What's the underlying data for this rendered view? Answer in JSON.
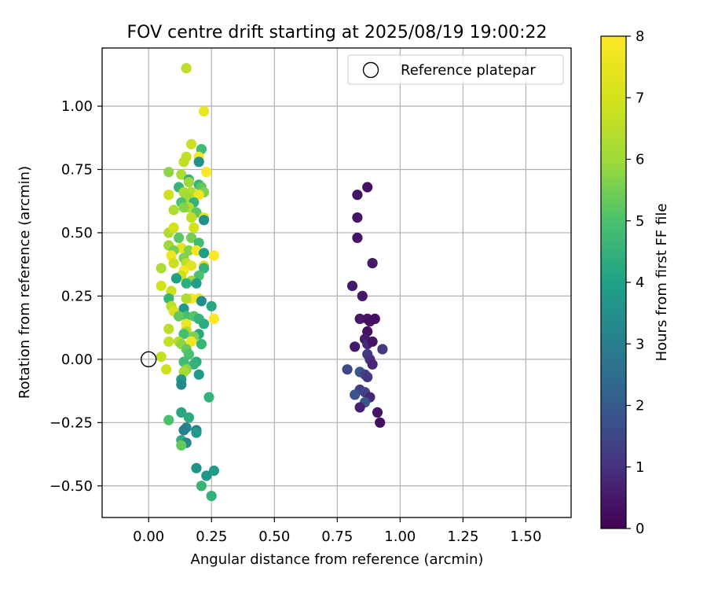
{
  "chart_data": {
    "type": "scatter",
    "title": "FOV centre drift starting at 2025/08/19 19:00:22",
    "xlabel": "Angular distance from reference (arcmin)",
    "ylabel": "Rotation from reference (arcmin)",
    "xlim": [
      -0.185,
      1.68
    ],
    "ylim": [
      -0.625,
      1.23
    ],
    "xticks": [
      0.0,
      0.25,
      0.5,
      0.75,
      1.0,
      1.25,
      1.5
    ],
    "xtick_labels": [
      "0.00",
      "0.25",
      "0.50",
      "0.75",
      "1.00",
      "1.25",
      "1.50"
    ],
    "yticks": [
      -0.5,
      -0.25,
      0.0,
      0.25,
      0.5,
      0.75,
      1.0
    ],
    "ytick_labels": [
      "−0.50",
      "−0.25",
      "0.00",
      "0.25",
      "0.50",
      "0.75",
      "1.00"
    ],
    "grid": true,
    "legend": {
      "placement": "top-right",
      "entries": [
        "Reference platepar"
      ]
    },
    "reference_point": {
      "x": 0.0,
      "y": 0.0
    },
    "colorbar": {
      "label": "Hours from first FF file",
      "range": [
        0,
        8
      ],
      "ticks": [
        0,
        1,
        2,
        3,
        4,
        5,
        6,
        7,
        8
      ],
      "tick_labels": [
        "0",
        "1",
        "2",
        "3",
        "4",
        "5",
        "6",
        "7",
        "8"
      ],
      "colormap": "viridis"
    },
    "points": [
      [
        0.87,
        0.68,
        0.3
      ],
      [
        0.83,
        0.65,
        0.4
      ],
      [
        0.83,
        0.56,
        0.4
      ],
      [
        0.83,
        0.48,
        0.4
      ],
      [
        0.89,
        0.38,
        0.5
      ],
      [
        0.81,
        0.29,
        0.5
      ],
      [
        0.85,
        0.25,
        0.5
      ],
      [
        0.84,
        0.16,
        0.5
      ],
      [
        0.87,
        0.16,
        0.4
      ],
      [
        0.88,
        0.15,
        0.3
      ],
      [
        0.9,
        0.16,
        0.3
      ],
      [
        0.87,
        0.11,
        0.3
      ],
      [
        0.86,
        0.08,
        0.5
      ],
      [
        0.82,
        0.05,
        0.5
      ],
      [
        0.87,
        0.06,
        0.8
      ],
      [
        0.89,
        0.07,
        0.4
      ],
      [
        0.93,
        0.04,
        1.2
      ],
      [
        0.87,
        0.02,
        1.2
      ],
      [
        0.88,
        0.0,
        1.0
      ],
      [
        0.89,
        -0.02,
        0.8
      ],
      [
        0.79,
        -0.04,
        1.6
      ],
      [
        0.84,
        -0.05,
        1.9
      ],
      [
        0.86,
        -0.06,
        1.4
      ],
      [
        0.87,
        -0.07,
        1.1
      ],
      [
        0.84,
        -0.12,
        1.3
      ],
      [
        0.86,
        -0.13,
        1.4
      ],
      [
        0.82,
        -0.14,
        1.8
      ],
      [
        0.88,
        -0.15,
        0.8
      ],
      [
        0.86,
        -0.17,
        1.9
      ],
      [
        0.84,
        -0.19,
        0.7
      ],
      [
        0.91,
        -0.21,
        0.4
      ],
      [
        0.92,
        -0.25,
        0.3
      ],
      [
        0.15,
        1.15,
        6.5
      ],
      [
        0.22,
        0.98,
        7.5
      ],
      [
        0.17,
        0.85,
        6.8
      ],
      [
        0.21,
        0.83,
        4.8
      ],
      [
        0.15,
        0.8,
        6.7
      ],
      [
        0.2,
        0.8,
        7.8
      ],
      [
        0.14,
        0.78,
        6.6
      ],
      [
        0.2,
        0.78,
        3.5
      ],
      [
        0.08,
        0.74,
        5.8
      ],
      [
        0.23,
        0.74,
        8.0
      ],
      [
        0.13,
        0.73,
        6.2
      ],
      [
        0.16,
        0.71,
        4.4
      ],
      [
        0.16,
        0.7,
        6.0
      ],
      [
        0.12,
        0.68,
        4.6
      ],
      [
        0.2,
        0.69,
        4.6
      ],
      [
        0.21,
        0.68,
        5.2
      ],
      [
        0.14,
        0.66,
        6.2
      ],
      [
        0.17,
        0.66,
        6.4
      ],
      [
        0.22,
        0.66,
        5.6
      ],
      [
        0.08,
        0.65,
        6.9
      ],
      [
        0.15,
        0.64,
        6.0
      ],
      [
        0.2,
        0.65,
        7.6
      ],
      [
        0.13,
        0.62,
        5.0
      ],
      [
        0.18,
        0.62,
        4.5
      ],
      [
        0.16,
        0.6,
        6.3
      ],
      [
        0.14,
        0.6,
        5.7
      ],
      [
        0.1,
        0.59,
        6.2
      ],
      [
        0.19,
        0.58,
        5.2
      ],
      [
        0.17,
        0.56,
        6.6
      ],
      [
        0.22,
        0.56,
        7.5
      ],
      [
        0.22,
        0.55,
        3.5
      ],
      [
        0.18,
        0.52,
        7.0
      ],
      [
        0.08,
        0.5,
        6.3
      ],
      [
        0.1,
        0.52,
        7.0
      ],
      [
        0.12,
        0.48,
        5.2
      ],
      [
        0.17,
        0.48,
        5.5
      ],
      [
        0.2,
        0.46,
        4.8
      ],
      [
        0.08,
        0.45,
        6.0
      ],
      [
        0.13,
        0.44,
        7.4
      ],
      [
        0.1,
        0.43,
        5.5
      ],
      [
        0.16,
        0.43,
        5.7
      ],
      [
        0.19,
        0.43,
        7.8
      ],
      [
        0.22,
        0.42,
        3.9
      ],
      [
        0.09,
        0.41,
        7.6
      ],
      [
        0.14,
        0.4,
        5.6
      ],
      [
        0.26,
        0.41,
        8.0
      ],
      [
        0.15,
        0.38,
        6.6
      ],
      [
        0.1,
        0.38,
        6.8
      ],
      [
        0.17,
        0.37,
        7.4
      ],
      [
        0.22,
        0.37,
        7.3
      ],
      [
        0.22,
        0.36,
        4.5
      ],
      [
        0.14,
        0.35,
        7.8
      ],
      [
        0.05,
        0.36,
        6.2
      ],
      [
        0.13,
        0.33,
        6.8
      ],
      [
        0.2,
        0.33,
        5.0
      ],
      [
        0.11,
        0.32,
        4.0
      ],
      [
        0.17,
        0.31,
        6.0
      ],
      [
        0.15,
        0.3,
        4.4
      ],
      [
        0.19,
        0.3,
        3.9
      ],
      [
        0.05,
        0.29,
        7.0
      ],
      [
        0.09,
        0.27,
        6.8
      ],
      [
        0.17,
        0.24,
        7.7
      ],
      [
        0.2,
        0.24,
        7.5
      ],
      [
        0.08,
        0.24,
        4.6
      ],
      [
        0.15,
        0.24,
        6.3
      ],
      [
        0.21,
        0.23,
        3.4
      ],
      [
        0.14,
        0.2,
        3.8
      ],
      [
        0.25,
        0.21,
        4.2
      ],
      [
        0.09,
        0.21,
        6.5
      ],
      [
        0.1,
        0.19,
        7.1
      ],
      [
        0.15,
        0.17,
        4.9
      ],
      [
        0.18,
        0.17,
        5.1
      ],
      [
        0.12,
        0.17,
        5.3
      ],
      [
        0.2,
        0.16,
        4.5
      ],
      [
        0.26,
        0.16,
        8.0
      ],
      [
        0.22,
        0.14,
        4.3
      ],
      [
        0.15,
        0.14,
        7.6
      ],
      [
        0.15,
        0.12,
        7.7
      ],
      [
        0.08,
        0.12,
        6.5
      ],
      [
        0.15,
        0.11,
        6.2
      ],
      [
        0.2,
        0.1,
        4.2
      ],
      [
        0.14,
        0.1,
        4.9
      ],
      [
        0.18,
        0.09,
        5.6
      ],
      [
        0.12,
        0.07,
        6.4
      ],
      [
        0.08,
        0.07,
        6.7
      ],
      [
        0.17,
        0.07,
        7.7
      ],
      [
        0.13,
        0.06,
        5.8
      ],
      [
        0.21,
        0.06,
        4.6
      ],
      [
        0.15,
        0.04,
        5.3
      ],
      [
        0.16,
        0.02,
        5.0
      ],
      [
        0.05,
        0.01,
        6.7
      ],
      [
        0.14,
        -0.01,
        4.8
      ],
      [
        0.19,
        -0.01,
        4.3
      ],
      [
        0.18,
        -0.02,
        4.5
      ],
      [
        0.15,
        -0.04,
        5.8
      ],
      [
        0.07,
        -0.04,
        6.9
      ],
      [
        0.14,
        -0.05,
        6.1
      ],
      [
        0.2,
        -0.06,
        3.8
      ],
      [
        0.13,
        -0.08,
        3.8
      ],
      [
        0.13,
        -0.1,
        3.3
      ],
      [
        0.24,
        -0.15,
        4.5
      ],
      [
        0.13,
        -0.21,
        4.2
      ],
      [
        0.16,
        -0.23,
        4.3
      ],
      [
        0.08,
        -0.24,
        5.0
      ],
      [
        0.15,
        -0.27,
        3.3
      ],
      [
        0.14,
        -0.28,
        3.0
      ],
      [
        0.19,
        -0.28,
        3.0
      ],
      [
        0.19,
        -0.29,
        3.8
      ],
      [
        0.13,
        -0.32,
        4.3
      ],
      [
        0.15,
        -0.33,
        3.2
      ],
      [
        0.13,
        -0.34,
        5.3
      ],
      [
        0.19,
        -0.43,
        3.6
      ],
      [
        0.26,
        -0.44,
        3.8
      ],
      [
        0.23,
        -0.46,
        3.7
      ],
      [
        0.21,
        -0.5,
        4.6
      ],
      [
        0.25,
        -0.54,
        4.5
      ]
    ]
  }
}
